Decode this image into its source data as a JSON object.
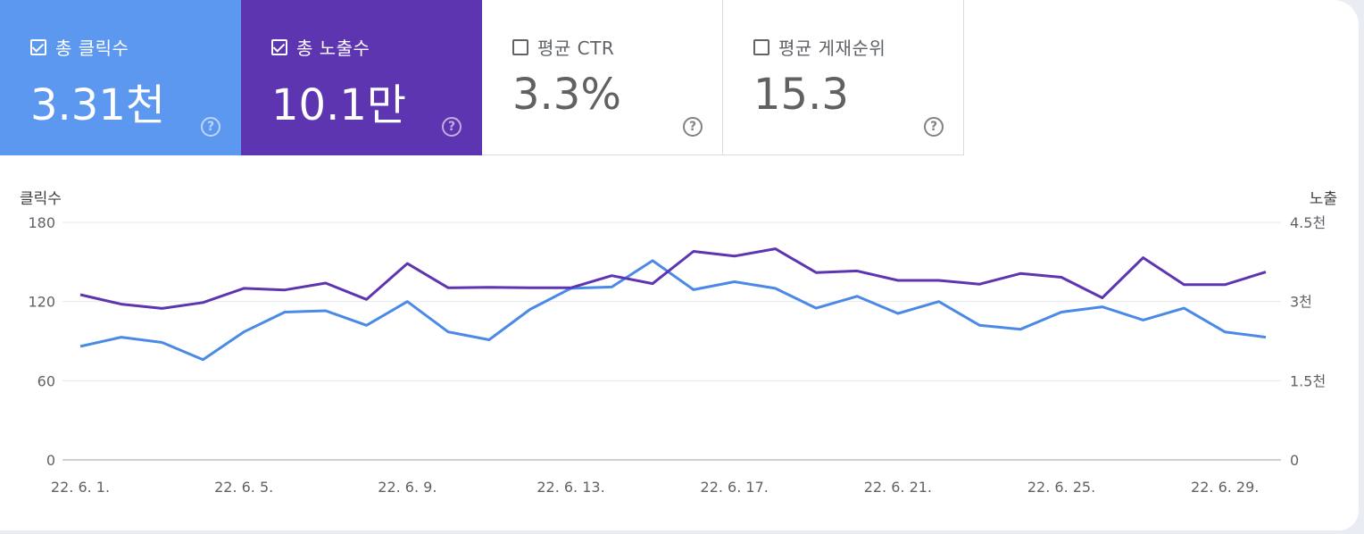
{
  "cards": [
    {
      "label": "총 클릭수",
      "value": "3.31천",
      "checked": true,
      "color": "#5c97f0",
      "help": "?"
    },
    {
      "label": "총 노출수",
      "value": "10.1만",
      "checked": true,
      "color": "#5e35b1",
      "help": "?"
    },
    {
      "label": "평균 CTR",
      "value": "3.3%",
      "checked": false,
      "color": "#ffffff",
      "help": "?"
    },
    {
      "label": "평균 게재순위",
      "value": "15.3",
      "checked": false,
      "color": "#ffffff",
      "help": "?"
    }
  ],
  "chart_data": {
    "type": "line",
    "grid": true,
    "x": [
      "22. 6. 1.",
      "22. 6. 2.",
      "22. 6. 3.",
      "22. 6. 4.",
      "22. 6. 5.",
      "22. 6. 6.",
      "22. 6. 7.",
      "22. 6. 8.",
      "22. 6. 9.",
      "22. 6. 10.",
      "22. 6. 11.",
      "22. 6. 12.",
      "22. 6. 13.",
      "22. 6. 14.",
      "22. 6. 15.",
      "22. 6. 16.",
      "22. 6. 17.",
      "22. 6. 18.",
      "22. 6. 19.",
      "22. 6. 20.",
      "22. 6. 21.",
      "22. 6. 22.",
      "22. 6. 23.",
      "22. 6. 24.",
      "22. 6. 25.",
      "22. 6. 26.",
      "22. 6. 27.",
      "22. 6. 28.",
      "22. 6. 29.",
      "22. 6. 30."
    ],
    "x_tick_labels": [
      "22. 6. 1.",
      "22. 6. 5.",
      "22. 6. 9.",
      "22. 6. 13.",
      "22. 6. 17.",
      "22. 6. 21.",
      "22. 6. 25.",
      "22. 6. 29."
    ],
    "y_left": {
      "label": "클릭수",
      "ticks": [
        "0",
        "60",
        "120",
        "180"
      ],
      "ylim": [
        0,
        180
      ]
    },
    "y_right": {
      "label": "노출",
      "ticks": [
        "0",
        "1.5천",
        "3천",
        "4.5천"
      ],
      "ylim": [
        0,
        4500
      ]
    },
    "series": [
      {
        "key": "clicks",
        "axis": "left",
        "color": "#4a8ae6",
        "values": [
          86,
          93,
          89,
          76,
          97,
          112,
          113,
          102,
          120,
          97,
          91,
          114,
          130,
          131,
          151,
          129,
          135,
          130,
          115,
          124,
          111,
          120,
          102,
          99,
          112,
          116,
          106,
          115,
          97,
          93
        ]
      },
      {
        "key": "impressions",
        "axis": "right",
        "color": "#5e35b1",
        "values": [
          3130,
          2950,
          2870,
          2980,
          3250,
          3220,
          3350,
          3040,
          3720,
          3260,
          3270,
          3260,
          3260,
          3490,
          3340,
          3950,
          3860,
          4000,
          3550,
          3580,
          3400,
          3400,
          3330,
          3530,
          3460,
          3070,
          3830,
          3320,
          3320,
          3560
        ]
      }
    ]
  }
}
